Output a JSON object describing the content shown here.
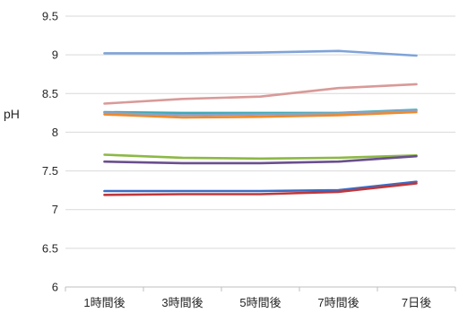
{
  "chart_data": {
    "type": "line",
    "title": "",
    "xlabel": "",
    "ylabel": "pH",
    "categories": [
      "1時間後",
      "3時間後",
      "5時間後",
      "7時間後",
      "7日後"
    ],
    "ylim": [
      6,
      9.5
    ],
    "yticks": [
      "6",
      "6.5",
      "7",
      "7.5",
      "8",
      "8.5",
      "9",
      "9.5"
    ],
    "ytick_values": [
      6,
      6.5,
      7,
      7.5,
      8,
      8.5,
      9,
      9.5
    ],
    "grid": true,
    "legend": "none",
    "series": [
      {
        "color": "#7fa3d8",
        "values": [
          9.02,
          9.02,
          9.03,
          9.05,
          8.99
        ]
      },
      {
        "color": "#d89a98",
        "values": [
          8.37,
          8.43,
          8.46,
          8.57,
          8.62
        ]
      },
      {
        "color": "#3fa9b5",
        "values": [
          8.26,
          8.25,
          8.25,
          8.25,
          8.29
        ]
      },
      {
        "color": "#8da3c7",
        "values": [
          8.25,
          8.22,
          8.23,
          8.24,
          8.28
        ]
      },
      {
        "color": "#f08a2c",
        "values": [
          8.23,
          8.19,
          8.2,
          8.22,
          8.26
        ]
      },
      {
        "color": "#8db845",
        "values": [
          7.71,
          7.67,
          7.66,
          7.67,
          7.7
        ]
      },
      {
        "color": "#6a4f8e",
        "values": [
          7.62,
          7.6,
          7.6,
          7.62,
          7.69
        ]
      },
      {
        "color": "#3b6cc4",
        "values": [
          7.24,
          7.24,
          7.24,
          7.25,
          7.36
        ]
      },
      {
        "color": "#c0373a",
        "values": [
          7.19,
          7.2,
          7.2,
          7.23,
          7.34
        ]
      }
    ]
  }
}
